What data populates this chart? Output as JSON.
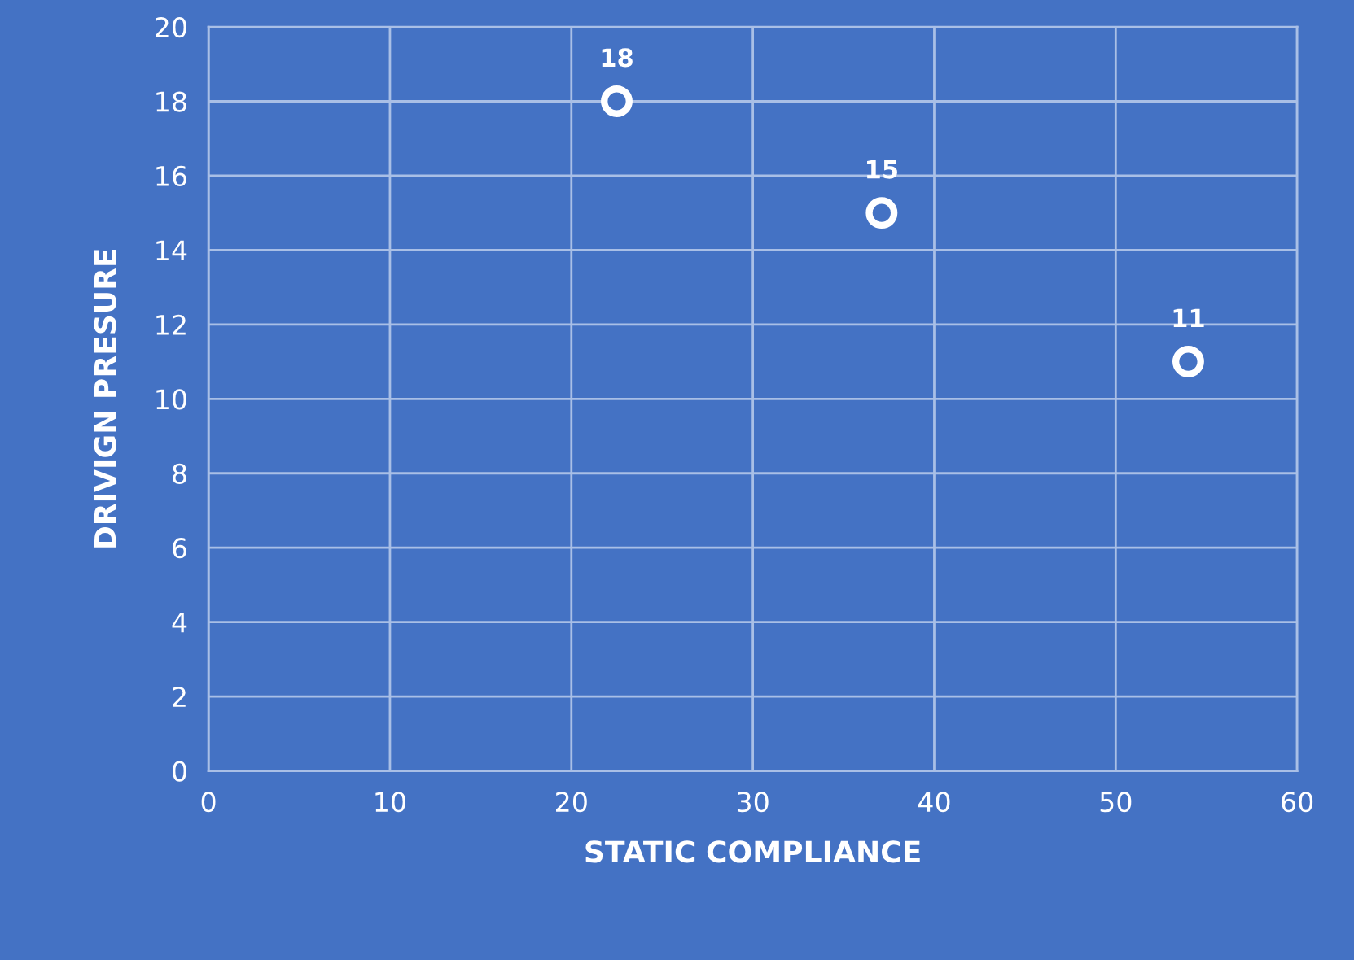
{
  "chart_data": {
    "type": "scatter",
    "xlabel": "STATIC COMPLIANCE",
    "ylabel": "DRIVIGN PRESURE",
    "series": [
      {
        "x": [
          22.5,
          37.1,
          54.0
        ],
        "values": [
          18,
          15,
          11
        ],
        "color": "#ffffff"
      }
    ],
    "xlim": [
      0,
      60
    ],
    "xticks": [
      0,
      10,
      20,
      30,
      40,
      50,
      60
    ],
    "ylim": [
      0,
      20
    ],
    "yticks": [
      0,
      2,
      4,
      6,
      8,
      10,
      12,
      14,
      16,
      18,
      20
    ],
    "grid": true,
    "marker": "circle",
    "data_labels": true
  }
}
